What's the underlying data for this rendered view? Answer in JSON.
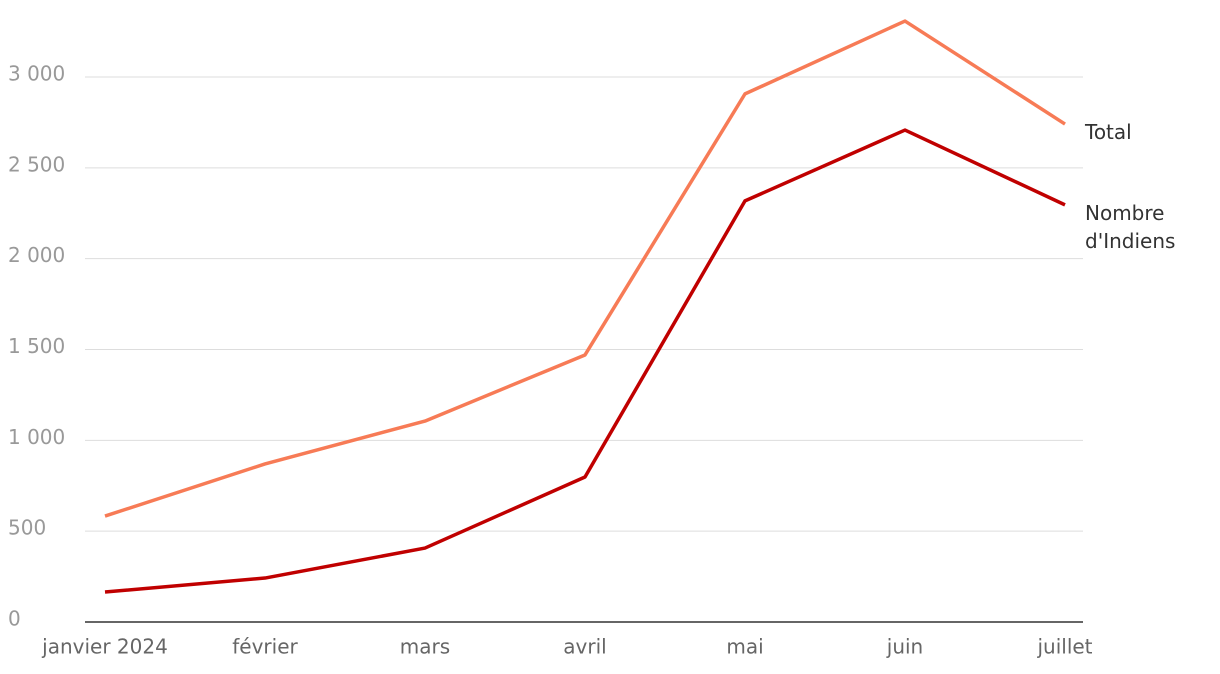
{
  "chart_data": {
    "type": "line",
    "categories": [
      "janvier 2024",
      "février",
      "mars",
      "avril",
      "mai",
      "juin",
      "juillet"
    ],
    "series": [
      {
        "name": "Total",
        "color": "#f77b56",
        "values": [
          583,
          870,
          1106,
          1470,
          2907,
          3308,
          2741
        ]
      },
      {
        "name": "Nombre d'Indiens",
        "color": "#c00000",
        "values": [
          165,
          242,
          407,
          798,
          2318,
          2708,
          2296
        ]
      }
    ],
    "ylim": [
      0,
      3400
    ],
    "yticks": [
      0,
      500,
      {
        "value": 1000,
        "label": "1 000"
      },
      {
        "value": 1500,
        "label": "1 500"
      },
      {
        "value": 2000,
        "label": "2 000"
      },
      {
        "value": 2500,
        "label": "2 500"
      },
      {
        "value": 3000,
        "label": "3 000"
      }
    ],
    "grid": true
  }
}
